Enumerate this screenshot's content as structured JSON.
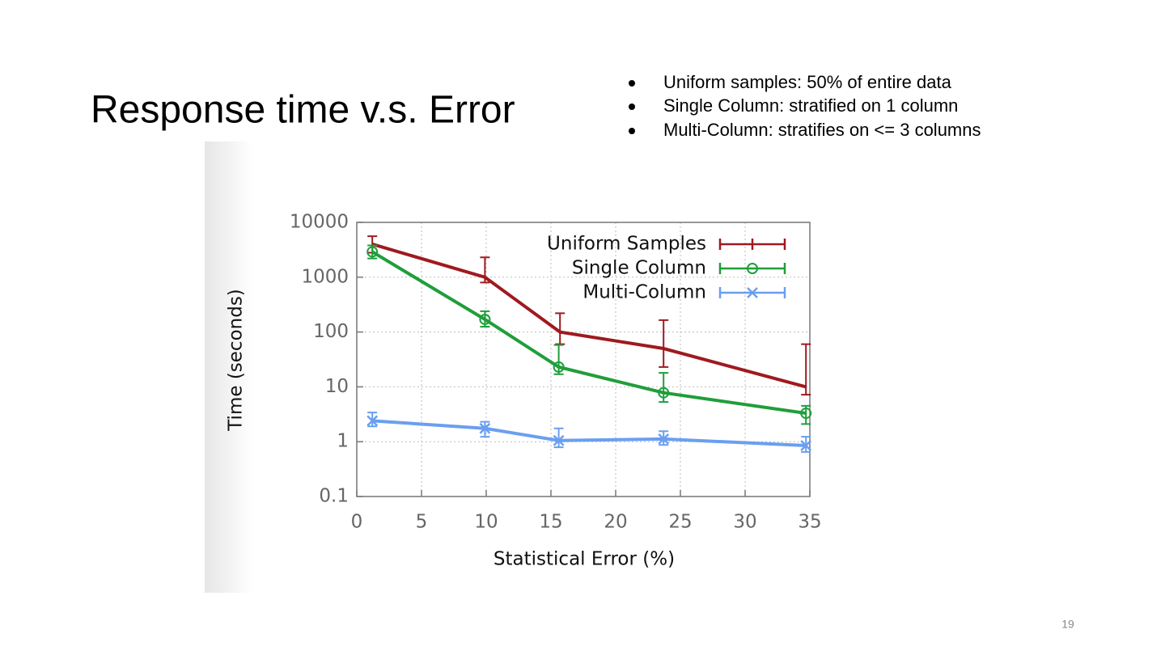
{
  "slide": {
    "title": "Response time v.s. Error",
    "bullets": [
      "Uniform samples: 50% of entire data",
      "Single Column: stratified on 1 column",
      "Multi-Column: stratifies on <= 3 columns"
    ],
    "page_number": "19"
  },
  "chart_data": {
    "type": "line",
    "xlabel": "Statistical Error (%)",
    "ylabel": "Time (seconds)",
    "xlim": [
      0,
      35
    ],
    "xticks": [
      0,
      5,
      10,
      15,
      20,
      25,
      30,
      35
    ],
    "ylim": [
      0.1,
      10000
    ],
    "yticks": [
      0.1,
      1,
      10,
      100,
      1000,
      10000
    ],
    "y_scale": "log",
    "grid": true,
    "legend": "upper right",
    "series": [
      {
        "name": "Uniform Samples",
        "color": "#9e1a1f",
        "marker": "none",
        "x": [
          1.2,
          9.9,
          15.7,
          23.7,
          34.7
        ],
        "values": [
          4000,
          1000,
          100,
          50,
          10
        ],
        "lower": [
          2800,
          800,
          60,
          23,
          7.2
        ],
        "upper": [
          5600,
          2300,
          220,
          165,
          60
        ]
      },
      {
        "name": "Single Column",
        "color": "#1f9e3a",
        "marker": "circle",
        "x": [
          1.2,
          9.9,
          15.6,
          23.7,
          34.7
        ],
        "values": [
          2900,
          170,
          23,
          7.8,
          3.3
        ],
        "lower": [
          2200,
          125,
          17,
          5.3,
          2.1
        ],
        "upper": [
          3800,
          240,
          58,
          18,
          4.5
        ]
      },
      {
        "name": "Multi-Column",
        "color": "#6a9ff0",
        "marker": "x",
        "x": [
          1.2,
          9.9,
          15.6,
          23.7,
          34.7
        ],
        "values": [
          2.4,
          1.75,
          1.05,
          1.12,
          0.85
        ],
        "lower": [
          1.9,
          1.23,
          0.79,
          0.87,
          0.65
        ],
        "upper": [
          3.4,
          2.3,
          1.75,
          1.55,
          1.23
        ]
      }
    ]
  }
}
